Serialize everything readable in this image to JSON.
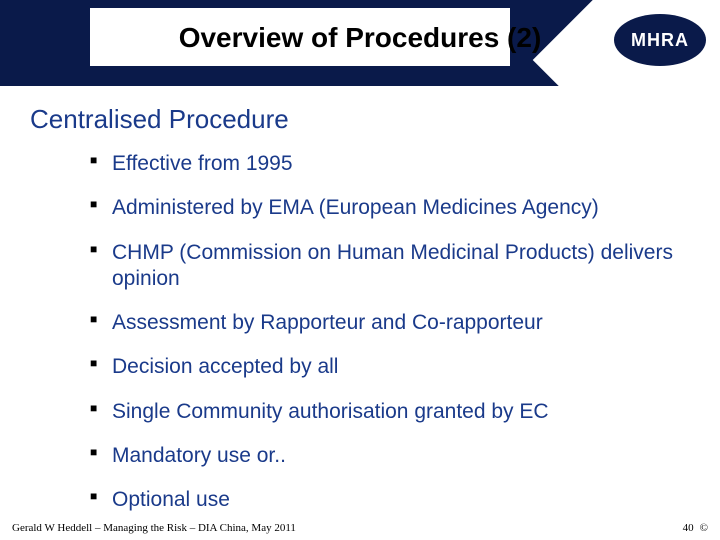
{
  "colors": {
    "header_band": "#0a1a4a",
    "background": "#ffffff",
    "title_text": "#000000",
    "heading_text": "#1a3a8a",
    "bullet_text": "#1a3a8a",
    "bullet_marker": "#000000",
    "logo_bg": "#0a1a4a",
    "logo_text": "#ffffff",
    "footer_text": "#000000"
  },
  "typography": {
    "title_fontsize": 28,
    "title_weight": "bold",
    "heading_fontsize": 26,
    "bullet_fontsize": 21,
    "footer_fontsize": 11,
    "footer_family": "Times New Roman"
  },
  "logo": {
    "text": "MHRA"
  },
  "title": "Overview of Procedures (2)",
  "section_heading": "Centralised Procedure",
  "bullets": [
    "Effective from 1995",
    "Administered by EMA (European Medicines Agency)",
    "CHMP (Commission on Human Medicinal Products) delivers opinion",
    "Assessment by Rapporteur and Co-rapporteur",
    "Decision accepted by all",
    "Single Community authorisation granted by EC",
    "Mandatory use or..",
    "Optional use"
  ],
  "footer": {
    "left": "Gerald W Heddell – Managing the Risk – DIA China, May 2011",
    "page": "40",
    "copyright": "©"
  }
}
